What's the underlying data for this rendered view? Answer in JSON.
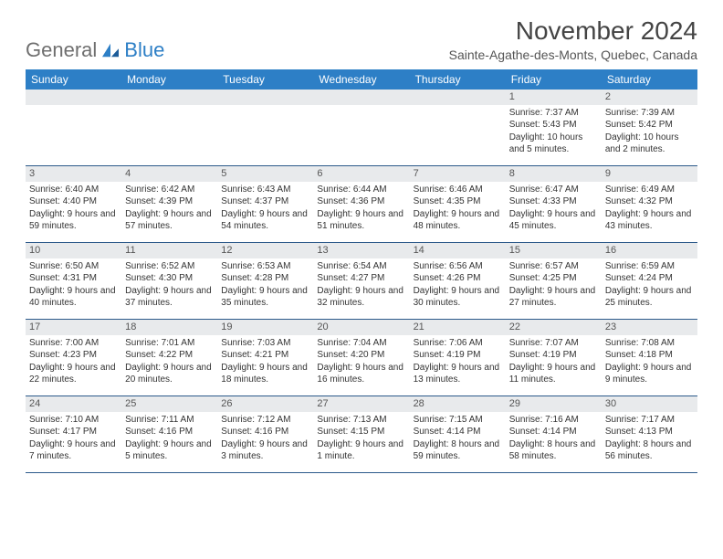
{
  "logo": {
    "word1": "General",
    "word2": "Blue"
  },
  "title": "November 2024",
  "location": "Sainte-Agathe-des-Monts, Quebec, Canada",
  "colors": {
    "header_bg": "#2d7fc6",
    "header_text": "#ffffff",
    "band_bg": "#e8eaec",
    "rule": "#2c5a8a",
    "page_bg": "#ffffff"
  },
  "dayNames": [
    "Sunday",
    "Monday",
    "Tuesday",
    "Wednesday",
    "Thursday",
    "Friday",
    "Saturday"
  ],
  "weeks": [
    [
      null,
      null,
      null,
      null,
      null,
      {
        "d": "1",
        "sr": "Sunrise: 7:37 AM",
        "ss": "Sunset: 5:43 PM",
        "dl": "Daylight: 10 hours and 5 minutes."
      },
      {
        "d": "2",
        "sr": "Sunrise: 7:39 AM",
        "ss": "Sunset: 5:42 PM",
        "dl": "Daylight: 10 hours and 2 minutes."
      }
    ],
    [
      {
        "d": "3",
        "sr": "Sunrise: 6:40 AM",
        "ss": "Sunset: 4:40 PM",
        "dl": "Daylight: 9 hours and 59 minutes."
      },
      {
        "d": "4",
        "sr": "Sunrise: 6:42 AM",
        "ss": "Sunset: 4:39 PM",
        "dl": "Daylight: 9 hours and 57 minutes."
      },
      {
        "d": "5",
        "sr": "Sunrise: 6:43 AM",
        "ss": "Sunset: 4:37 PM",
        "dl": "Daylight: 9 hours and 54 minutes."
      },
      {
        "d": "6",
        "sr": "Sunrise: 6:44 AM",
        "ss": "Sunset: 4:36 PM",
        "dl": "Daylight: 9 hours and 51 minutes."
      },
      {
        "d": "7",
        "sr": "Sunrise: 6:46 AM",
        "ss": "Sunset: 4:35 PM",
        "dl": "Daylight: 9 hours and 48 minutes."
      },
      {
        "d": "8",
        "sr": "Sunrise: 6:47 AM",
        "ss": "Sunset: 4:33 PM",
        "dl": "Daylight: 9 hours and 45 minutes."
      },
      {
        "d": "9",
        "sr": "Sunrise: 6:49 AM",
        "ss": "Sunset: 4:32 PM",
        "dl": "Daylight: 9 hours and 43 minutes."
      }
    ],
    [
      {
        "d": "10",
        "sr": "Sunrise: 6:50 AM",
        "ss": "Sunset: 4:31 PM",
        "dl": "Daylight: 9 hours and 40 minutes."
      },
      {
        "d": "11",
        "sr": "Sunrise: 6:52 AM",
        "ss": "Sunset: 4:30 PM",
        "dl": "Daylight: 9 hours and 37 minutes."
      },
      {
        "d": "12",
        "sr": "Sunrise: 6:53 AM",
        "ss": "Sunset: 4:28 PM",
        "dl": "Daylight: 9 hours and 35 minutes."
      },
      {
        "d": "13",
        "sr": "Sunrise: 6:54 AM",
        "ss": "Sunset: 4:27 PM",
        "dl": "Daylight: 9 hours and 32 minutes."
      },
      {
        "d": "14",
        "sr": "Sunrise: 6:56 AM",
        "ss": "Sunset: 4:26 PM",
        "dl": "Daylight: 9 hours and 30 minutes."
      },
      {
        "d": "15",
        "sr": "Sunrise: 6:57 AM",
        "ss": "Sunset: 4:25 PM",
        "dl": "Daylight: 9 hours and 27 minutes."
      },
      {
        "d": "16",
        "sr": "Sunrise: 6:59 AM",
        "ss": "Sunset: 4:24 PM",
        "dl": "Daylight: 9 hours and 25 minutes."
      }
    ],
    [
      {
        "d": "17",
        "sr": "Sunrise: 7:00 AM",
        "ss": "Sunset: 4:23 PM",
        "dl": "Daylight: 9 hours and 22 minutes."
      },
      {
        "d": "18",
        "sr": "Sunrise: 7:01 AM",
        "ss": "Sunset: 4:22 PM",
        "dl": "Daylight: 9 hours and 20 minutes."
      },
      {
        "d": "19",
        "sr": "Sunrise: 7:03 AM",
        "ss": "Sunset: 4:21 PM",
        "dl": "Daylight: 9 hours and 18 minutes."
      },
      {
        "d": "20",
        "sr": "Sunrise: 7:04 AM",
        "ss": "Sunset: 4:20 PM",
        "dl": "Daylight: 9 hours and 16 minutes."
      },
      {
        "d": "21",
        "sr": "Sunrise: 7:06 AM",
        "ss": "Sunset: 4:19 PM",
        "dl": "Daylight: 9 hours and 13 minutes."
      },
      {
        "d": "22",
        "sr": "Sunrise: 7:07 AM",
        "ss": "Sunset: 4:19 PM",
        "dl": "Daylight: 9 hours and 11 minutes."
      },
      {
        "d": "23",
        "sr": "Sunrise: 7:08 AM",
        "ss": "Sunset: 4:18 PM",
        "dl": "Daylight: 9 hours and 9 minutes."
      }
    ],
    [
      {
        "d": "24",
        "sr": "Sunrise: 7:10 AM",
        "ss": "Sunset: 4:17 PM",
        "dl": "Daylight: 9 hours and 7 minutes."
      },
      {
        "d": "25",
        "sr": "Sunrise: 7:11 AM",
        "ss": "Sunset: 4:16 PM",
        "dl": "Daylight: 9 hours and 5 minutes."
      },
      {
        "d": "26",
        "sr": "Sunrise: 7:12 AM",
        "ss": "Sunset: 4:16 PM",
        "dl": "Daylight: 9 hours and 3 minutes."
      },
      {
        "d": "27",
        "sr": "Sunrise: 7:13 AM",
        "ss": "Sunset: 4:15 PM",
        "dl": "Daylight: 9 hours and 1 minute."
      },
      {
        "d": "28",
        "sr": "Sunrise: 7:15 AM",
        "ss": "Sunset: 4:14 PM",
        "dl": "Daylight: 8 hours and 59 minutes."
      },
      {
        "d": "29",
        "sr": "Sunrise: 7:16 AM",
        "ss": "Sunset: 4:14 PM",
        "dl": "Daylight: 8 hours and 58 minutes."
      },
      {
        "d": "30",
        "sr": "Sunrise: 7:17 AM",
        "ss": "Sunset: 4:13 PM",
        "dl": "Daylight: 8 hours and 56 minutes."
      }
    ]
  ]
}
